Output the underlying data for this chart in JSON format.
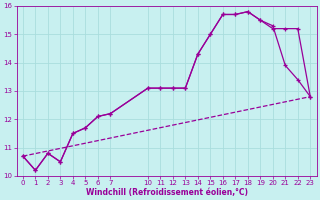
{
  "xlabel": "Windchill (Refroidissement éolien,°C)",
  "bg_color": "#c8f0f0",
  "line_color": "#990099",
  "grid_color": "#aadddd",
  "xlim": [
    -0.5,
    23.5
  ],
  "ylim": [
    10.0,
    16.0
  ],
  "yticks": [
    10,
    11,
    12,
    13,
    14,
    15,
    16
  ],
  "xticks": [
    0,
    1,
    2,
    3,
    4,
    5,
    6,
    7,
    10,
    11,
    12,
    13,
    14,
    15,
    16,
    17,
    18,
    19,
    20,
    21,
    22,
    23
  ],
  "line1_x": [
    0,
    1,
    2,
    3,
    4,
    5,
    6,
    7,
    10,
    11,
    12,
    13,
    14,
    15,
    16,
    17,
    18,
    19,
    20,
    21,
    22,
    23
  ],
  "line1_y": [
    10.7,
    10.2,
    10.8,
    10.5,
    11.5,
    11.7,
    12.1,
    12.2,
    13.1,
    13.1,
    13.1,
    13.1,
    14.3,
    15.0,
    15.7,
    15.7,
    15.8,
    15.5,
    15.3,
    13.9,
    13.4,
    12.8
  ],
  "line2_x": [
    0,
    1,
    2,
    3,
    4,
    5,
    6,
    7,
    10,
    11,
    12,
    13,
    14,
    15,
    16,
    17,
    18,
    19,
    20,
    21,
    22,
    23
  ],
  "line2_y": [
    10.7,
    10.2,
    10.8,
    10.5,
    11.5,
    11.7,
    12.1,
    12.2,
    13.1,
    13.1,
    13.1,
    13.1,
    14.3,
    15.0,
    15.7,
    15.7,
    15.8,
    15.5,
    15.2,
    15.2,
    15.2,
    12.8
  ],
  "line3_x": [
    0,
    23
  ],
  "line3_y": [
    10.7,
    12.8
  ]
}
